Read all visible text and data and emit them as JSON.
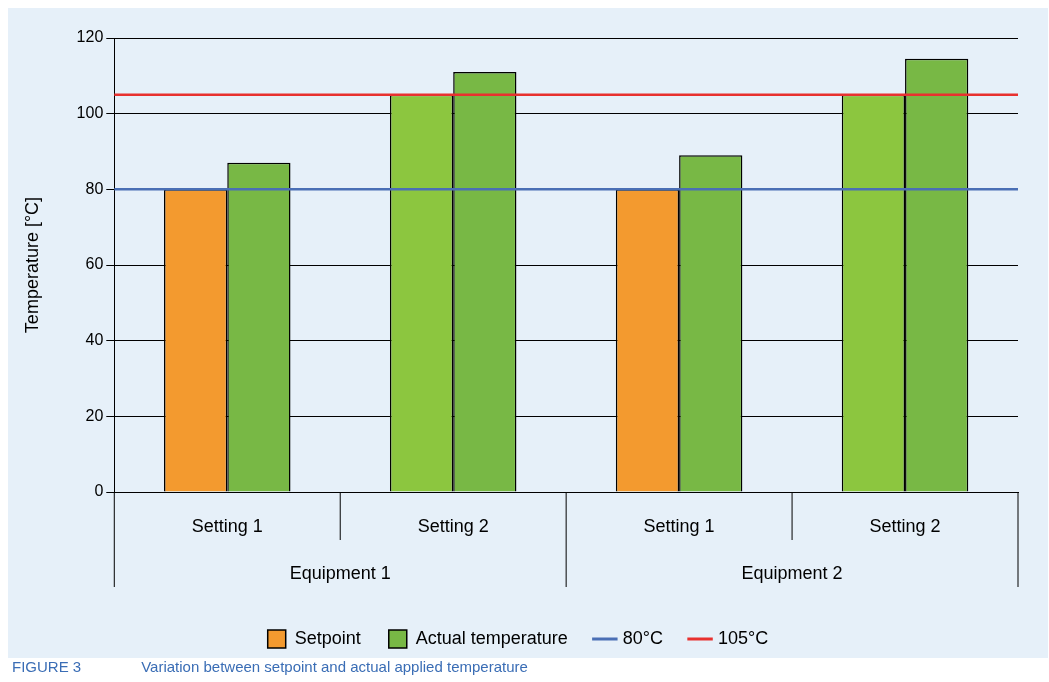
{
  "chart_data": {
    "type": "bar",
    "title": "FIGURE 3",
    "subtitle": "Variation between setpoint and actual applied temperature",
    "ylabel": "Temperature [°C]",
    "categories": [
      "Setting 1",
      "Setting 2",
      "Setting 1",
      "Setting 2"
    ],
    "series": [
      {
        "name": "Setpoint",
        "colors": [
          "#f39a2f",
          "#8cc63f",
          "#f39a2f",
          "#8cc63f"
        ],
        "values": [
          80,
          105,
          80,
          105
        ]
      },
      {
        "name": "Actual temperature",
        "color": "#78b845",
        "values": [
          87,
          111,
          89,
          114.5
        ]
      }
    ],
    "ylim": [
      0,
      120
    ],
    "yticks": [
      0,
      20,
      40,
      60,
      80,
      100,
      120
    ],
    "grid": "y",
    "legend": "bottom",
    "ref_lines": [
      {
        "axis": "y",
        "value": 80,
        "label": "80°C",
        "color": "#4a6fb5"
      },
      {
        "axis": "y",
        "value": 105,
        "label": "105°C",
        "color": "#e8312f"
      }
    ],
    "annotations": [
      "Equipment 1",
      "Equipment 2"
    ]
  }
}
